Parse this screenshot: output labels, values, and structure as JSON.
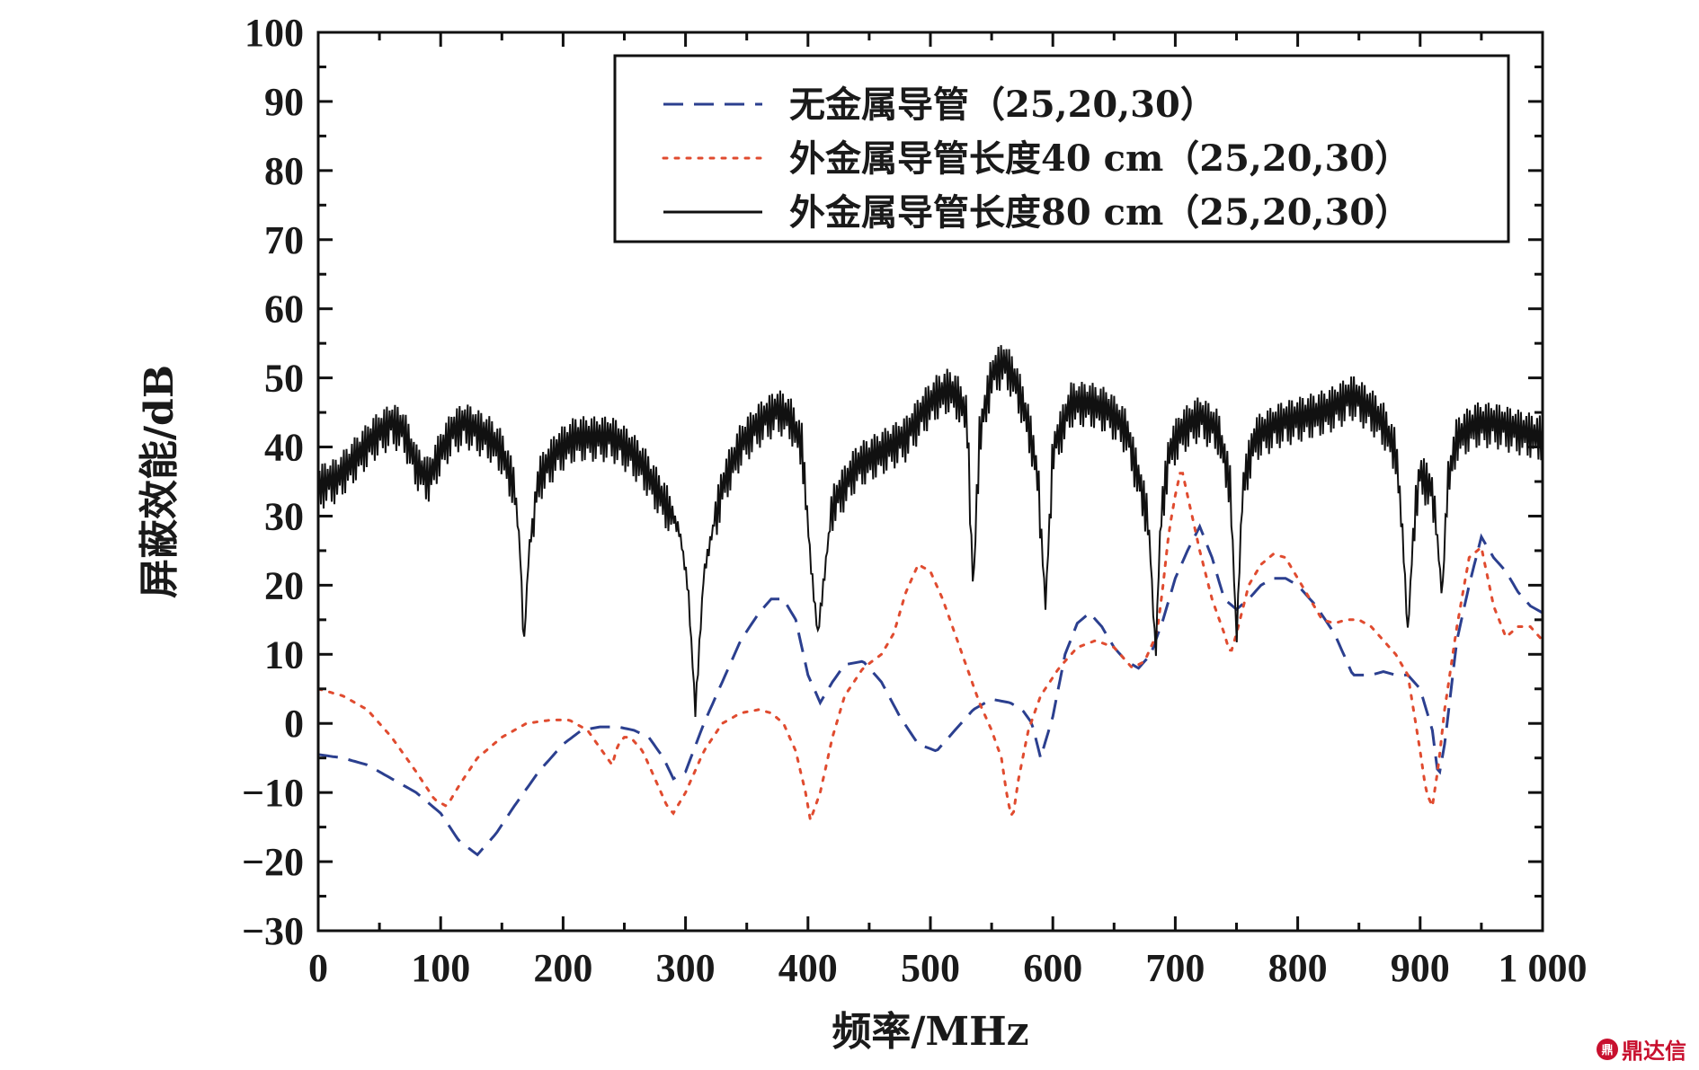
{
  "chart_data": {
    "type": "line",
    "title": "",
    "xlabel": "频率/MHz",
    "ylabel": "屏蔽效能/dB",
    "xlim": [
      0,
      1000
    ],
    "ylim": [
      -30,
      100
    ],
    "x_ticks": [
      "0",
      "100",
      "200",
      "300",
      "400",
      "500",
      "600",
      "700",
      "800",
      "900",
      "1 000"
    ],
    "y_ticks": [
      "−30",
      "−20",
      "−10",
      "0",
      "10",
      "20",
      "30",
      "40",
      "50",
      "60",
      "70",
      "80",
      "90",
      "100"
    ],
    "grid": false,
    "legend_position": "top-right",
    "series": [
      {
        "name": "无金属导管（25,20,30）",
        "color": "#2b3f8f",
        "style": "dashed",
        "x": [
          0,
          20,
          40,
          60,
          80,
          100,
          115,
          130,
          145,
          160,
          180,
          200,
          215,
          230,
          245,
          258,
          270,
          282,
          290,
          300,
          315,
          330,
          345,
          360,
          370,
          380,
          390,
          400,
          410,
          420,
          430,
          445,
          460,
          475,
          490,
          505,
          520,
          535,
          550,
          565,
          575,
          583,
          590,
          600,
          610,
          620,
          630,
          640,
          650,
          660,
          670,
          680,
          690,
          700,
          710,
          720,
          730,
          740,
          750,
          760,
          770,
          780,
          790,
          800,
          815,
          830,
          845,
          860,
          870,
          880,
          890,
          900,
          910,
          915,
          920,
          930,
          940,
          950,
          960,
          970,
          980,
          990,
          1000
        ],
        "y": [
          -4.5,
          -5,
          -6,
          -8,
          -10,
          -13,
          -17,
          -19,
          -16,
          -12,
          -7,
          -3,
          -1,
          -0.5,
          -0.5,
          -1,
          -2,
          -5,
          -8,
          -7,
          0,
          6,
          12,
          16,
          18,
          18,
          15,
          7,
          3,
          6,
          8.5,
          9,
          6,
          1,
          -3,
          -4,
          -1,
          2,
          3.5,
          3,
          2,
          0,
          -5,
          1,
          10,
          14.5,
          16,
          14,
          11,
          9,
          8,
          10,
          15,
          21,
          25,
          28.5,
          24,
          18,
          16.5,
          18,
          20,
          21,
          21,
          20,
          17,
          13,
          7,
          7,
          7.5,
          7,
          7,
          5,
          -1,
          -8,
          -3,
          12,
          20,
          27,
          24,
          22,
          19,
          17,
          16
        ]
      },
      {
        "name": "外金属导管长度40 cm（25,20,30）",
        "color": "#e04b2f",
        "style": "dotted",
        "x": [
          0,
          20,
          40,
          60,
          80,
          95,
          105,
          115,
          130,
          150,
          170,
          190,
          205,
          220,
          232,
          240,
          245,
          250,
          255,
          265,
          275,
          285,
          290,
          300,
          315,
          330,
          345,
          360,
          370,
          380,
          390,
          398,
          402,
          410,
          420,
          430,
          445,
          460,
          470,
          480,
          490,
          500,
          510,
          520,
          530,
          540,
          550,
          558,
          563,
          567,
          572,
          580,
          590,
          605,
          620,
          635,
          650,
          665,
          675,
          685,
          690,
          695,
          700,
          705,
          710,
          720,
          730,
          740,
          745,
          750,
          760,
          770,
          780,
          790,
          800,
          810,
          820,
          830,
          840,
          850,
          860,
          870,
          880,
          890,
          900,
          905,
          910,
          915,
          920,
          930,
          940,
          950,
          960,
          970,
          980,
          990,
          1000
        ],
        "y": [
          5,
          4,
          2,
          -2,
          -7,
          -11,
          -12,
          -9,
          -5,
          -2,
          0,
          0.5,
          0.5,
          -1,
          -4,
          -6,
          -3,
          -2,
          -2,
          -4,
          -8,
          -12,
          -13,
          -10,
          -4,
          0,
          1.5,
          2,
          1.5,
          0,
          -4,
          -10,
          -14,
          -10,
          -2,
          4,
          8,
          10,
          13,
          19,
          23,
          22,
          18,
          13,
          8,
          3,
          -1,
          -5,
          -11,
          -14,
          -8,
          -1,
          4,
          8,
          11,
          12,
          11,
          8,
          9,
          13,
          20,
          28,
          33,
          37,
          33,
          25,
          18,
          13,
          10,
          13,
          20,
          23,
          24.5,
          24,
          21,
          18,
          15,
          14.5,
          15,
          15,
          14,
          12,
          10,
          7,
          -4,
          -10,
          -12,
          -6,
          2,
          14,
          24,
          25.5,
          17,
          12.5,
          14,
          14,
          12
        ]
      },
      {
        "name": "外金属导管长度80 cm（25,20,30）",
        "color": "#111111",
        "style": "solid",
        "x": [
          0,
          15,
          30,
          45,
          60,
          70,
          80,
          90,
          100,
          110,
          120,
          130,
          140,
          150,
          160,
          165,
          168,
          172,
          180,
          195,
          210,
          225,
          240,
          255,
          265,
          275,
          285,
          295,
          302,
          308,
          315,
          330,
          345,
          360,
          375,
          385,
          395,
          402,
          408,
          420,
          440,
          460,
          480,
          495,
          505,
          515,
          522,
          530,
          535,
          540,
          550,
          560,
          570,
          580,
          588,
          594,
          600,
          615,
          630,
          645,
          660,
          670,
          678,
          684,
          688,
          695,
          705,
          720,
          735,
          745,
          750,
          755,
          765,
          785,
          805,
          825,
          845,
          860,
          870,
          880,
          885,
          890,
          895,
          900,
          910,
          915,
          918,
          922,
          930,
          945,
          960,
          980,
          1000
        ],
        "y": [
          35,
          36,
          39,
          42,
          44,
          43,
          38,
          36,
          40,
          43,
          44,
          43,
          42,
          40,
          35,
          25,
          11,
          25,
          36,
          40,
          42,
          42,
          42,
          40,
          38,
          35,
          32,
          28,
          20,
          2,
          22,
          35,
          41,
          44,
          46,
          45,
          41,
          24,
          13,
          32,
          38,
          40,
          42,
          46,
          48,
          49,
          48,
          45,
          19,
          42,
          51,
          53,
          50,
          44,
          36,
          17,
          40,
          47,
          47,
          46,
          43,
          36,
          30,
          10,
          30,
          40,
          43,
          45,
          43,
          35,
          12,
          35,
          42,
          44,
          45,
          46,
          48,
          46,
          44,
          40,
          30,
          13,
          30,
          37,
          34,
          25,
          18,
          35,
          42,
          44,
          44,
          43,
          42
        ],
        "noise_amplitude_db": 7
      }
    ]
  },
  "watermark": {
    "logo": "鼎",
    "text": "鼎达信"
  }
}
